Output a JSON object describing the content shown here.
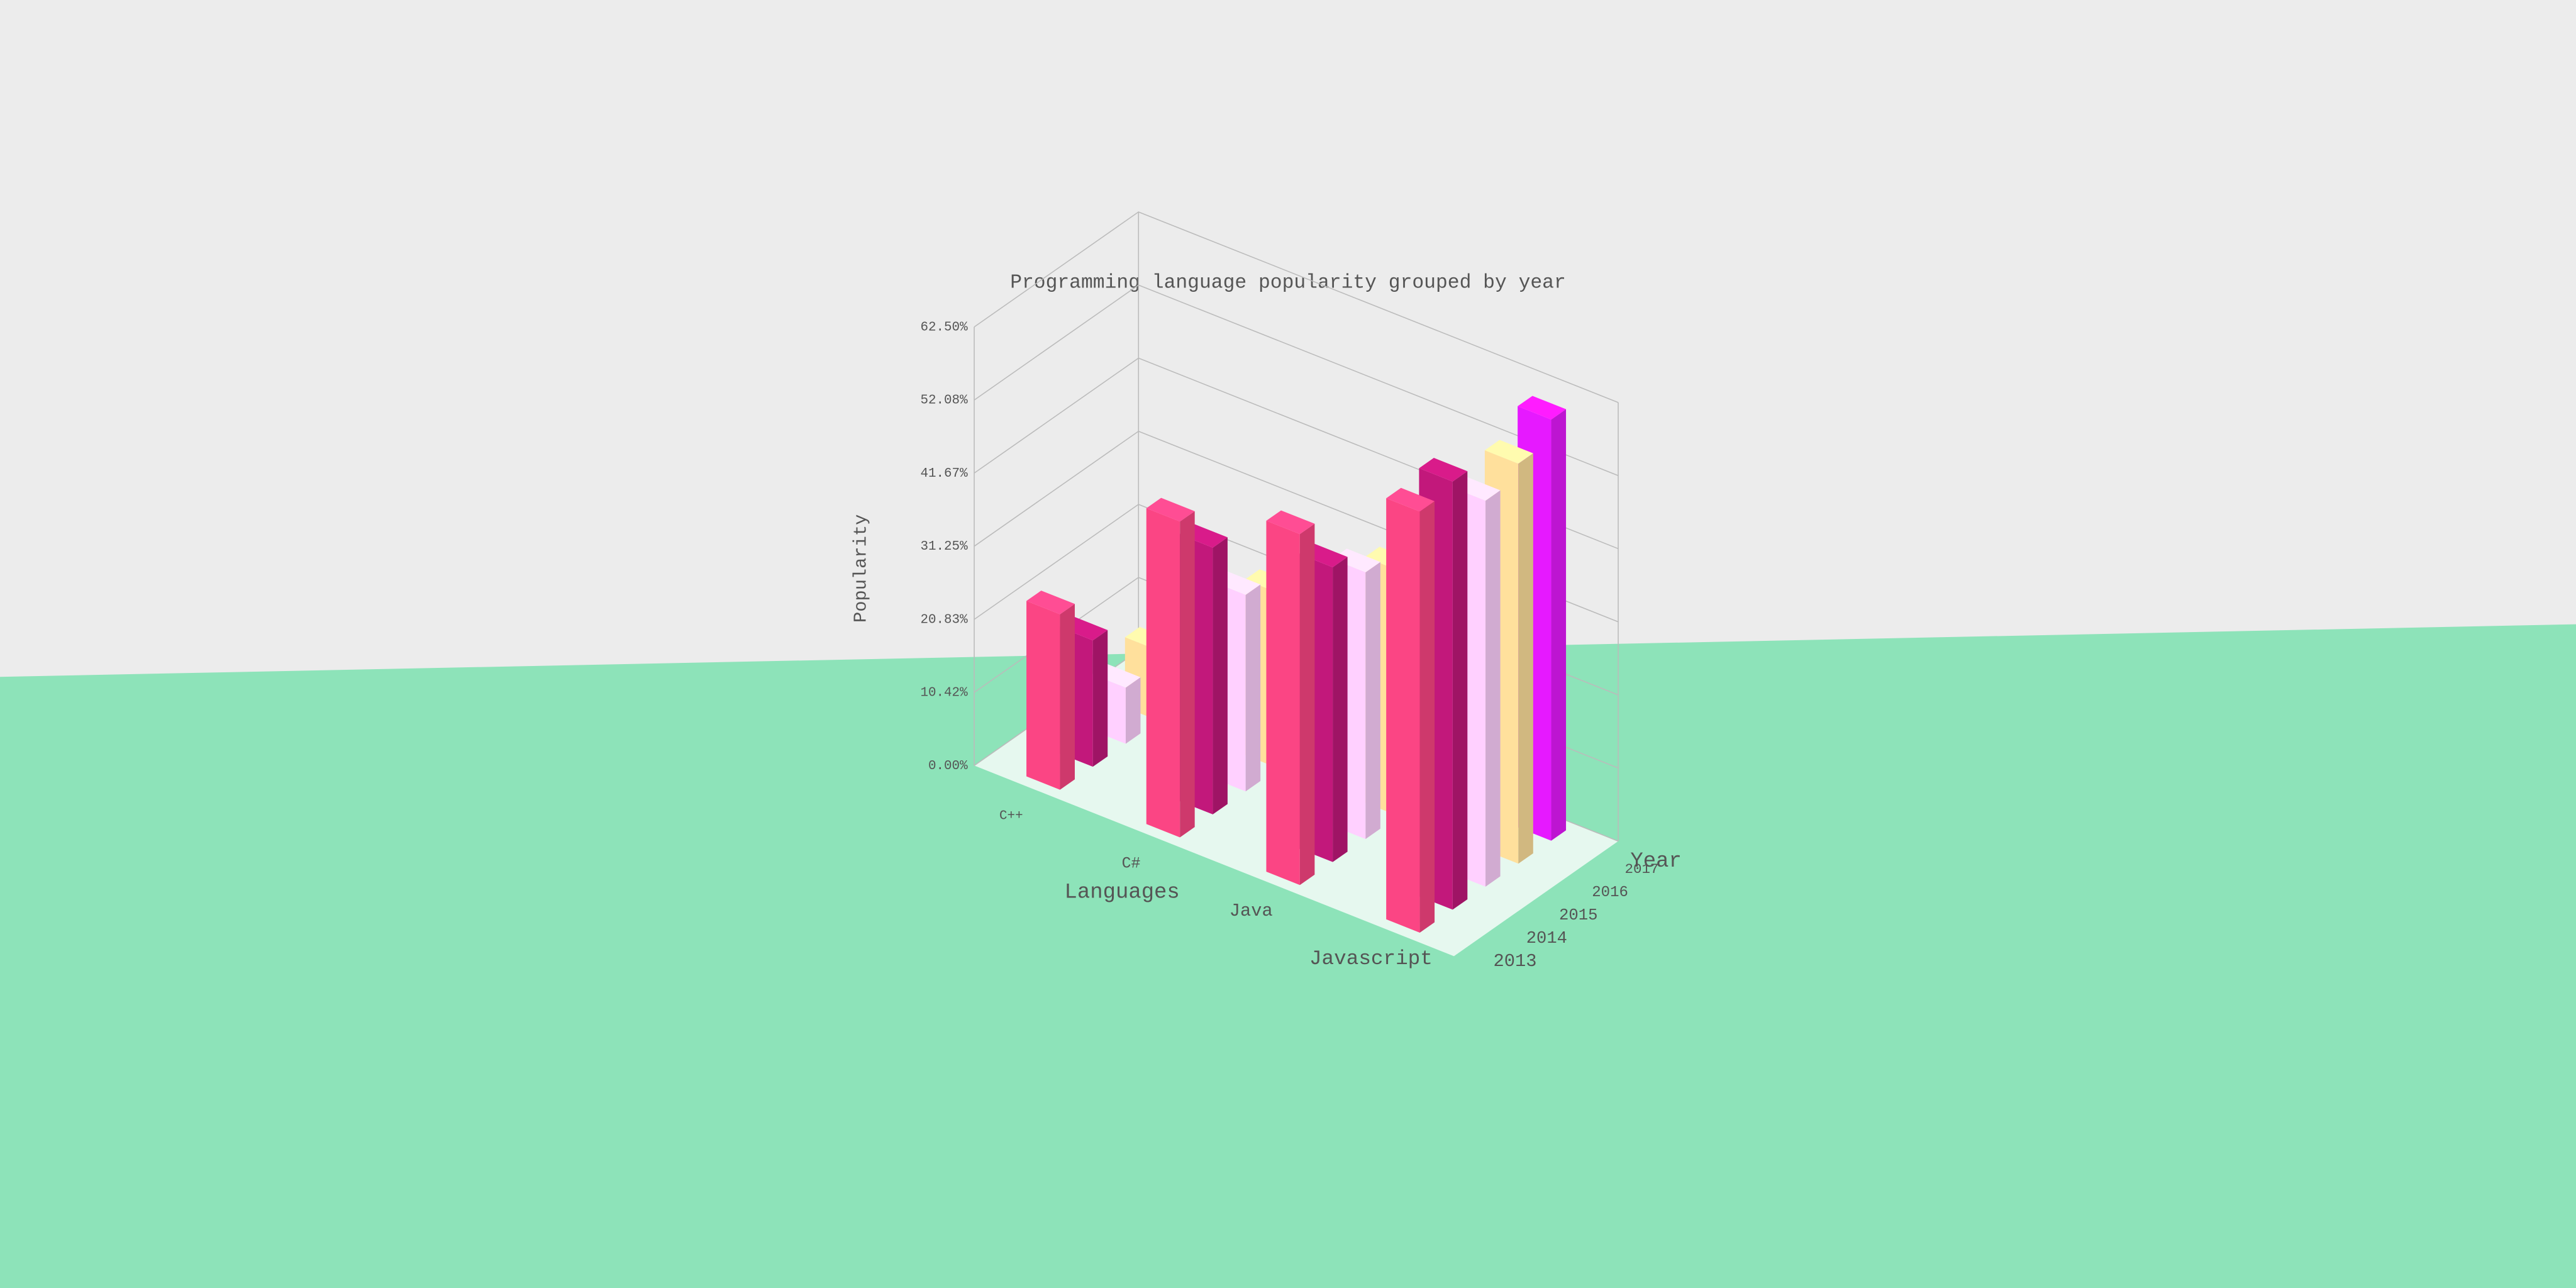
{
  "chart_data": {
    "type": "bar3d",
    "title": "Programming language popularity grouped by year",
    "x_label": "Languages",
    "z_label": "Year",
    "y_label": "Popularity",
    "categories": [
      "C++",
      "C#",
      "Java",
      "Javascript"
    ],
    "series": [
      {
        "name": "2013",
        "color": "#fb4584",
        "values": [
          25,
          45,
          50,
          60
        ]
      },
      {
        "name": "2014",
        "color": "#c2187b",
        "values": [
          18,
          38,
          42,
          61
        ]
      },
      {
        "name": "2015",
        "color": "#ffd0ff",
        "values": [
          8,
          28,
          38,
          55
        ]
      },
      {
        "name": "2016",
        "color": "#ffe09c",
        "values": [
          10,
          25,
          35,
          57
        ]
      },
      {
        "name": "2017",
        "color": "#e619ff",
        "values": [
          15,
          17,
          32,
          60
        ]
      }
    ],
    "ylim": [
      0,
      62.5
    ],
    "yticks": [
      {
        "value": 0,
        "label": "0.00%"
      },
      {
        "value": 10.42,
        "label": "10.42%"
      },
      {
        "value": 20.83,
        "label": "20.83%"
      },
      {
        "value": 31.25,
        "label": "31.25%"
      },
      {
        "value": 41.67,
        "label": "41.67%"
      },
      {
        "value": 52.08,
        "label": "52.08%"
      },
      {
        "value": 62.5,
        "label": "62.50%"
      }
    ],
    "grid": true
  }
}
